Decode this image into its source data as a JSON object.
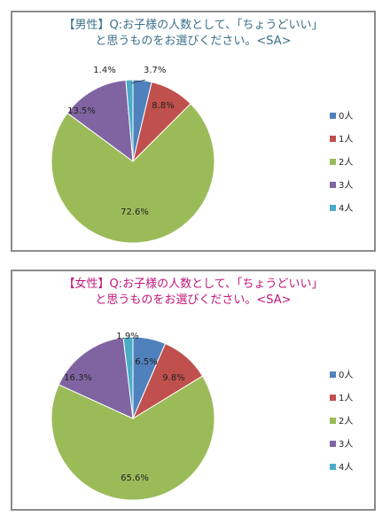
{
  "chart_data": [
    {
      "type": "pie",
      "title": "【男性】Q:お子様の人数として、「ちょうどいい」\nと思うものをお選びください。<SA>",
      "categories": [
        "0人",
        "1人",
        "2人",
        "3人",
        "4人"
      ],
      "values": [
        3.7,
        8.8,
        72.6,
        13.5,
        1.4
      ],
      "value_labels": [
        "3.7%",
        "8.8%",
        "72.6%",
        "13.5%",
        "1.4%"
      ],
      "colors": [
        "#4f81bd",
        "#c0504d",
        "#9bbb59",
        "#8064a2",
        "#4bacc6"
      ],
      "legend": "right"
    },
    {
      "type": "pie",
      "title": "【女性】Q:お子様の人数として、「ちょうどいい」\nと思うものをお選びください。<SA>",
      "categories": [
        "0人",
        "1人",
        "2人",
        "3人",
        "4人"
      ],
      "values": [
        6.5,
        9.8,
        65.6,
        16.3,
        1.9
      ],
      "value_labels": [
        "6.5%",
        "9.8%",
        "65.6%",
        "16.3%",
        "1.9%"
      ],
      "colors": [
        "#4f81bd",
        "#c0504d",
        "#9bbb59",
        "#8064a2",
        "#4bacc6"
      ],
      "legend": "right"
    }
  ]
}
